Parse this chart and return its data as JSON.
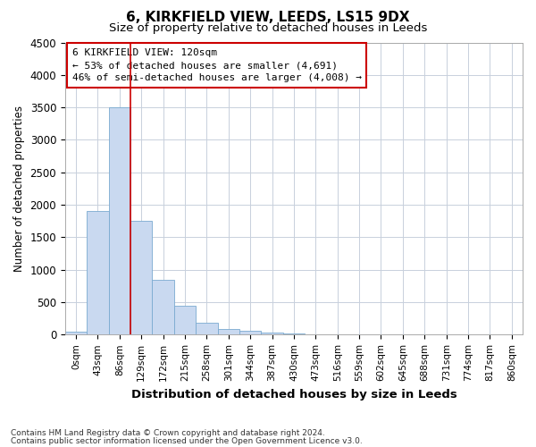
{
  "title": "6, KIRKFIELD VIEW, LEEDS, LS15 9DX",
  "subtitle": "Size of property relative to detached houses in Leeds",
  "xlabel": "Distribution of detached houses by size in Leeds",
  "ylabel": "Number of detached properties",
  "annotation_line1": "6 KIRKFIELD VIEW: 120sqm",
  "annotation_line2": "← 53% of detached houses are smaller (4,691)",
  "annotation_line3": "46% of semi-detached houses are larger (4,008) →",
  "footer_line1": "Contains HM Land Registry data © Crown copyright and database right 2024.",
  "footer_line2": "Contains public sector information licensed under the Open Government Licence v3.0.",
  "bar_color": "#c9d9f0",
  "bar_edge_color": "#7aaad0",
  "vline_color": "#cc0000",
  "vline_x": 2.5,
  "annotation_box_color": "#cc0000",
  "background_color": "#ffffff",
  "grid_color": "#c8d0dc",
  "categories": [
    "0sqm",
    "43sqm",
    "86sqm",
    "129sqm",
    "172sqm",
    "215sqm",
    "258sqm",
    "301sqm",
    "344sqm",
    "387sqm",
    "430sqm",
    "473sqm",
    "516sqm",
    "559sqm",
    "602sqm",
    "645sqm",
    "688sqm",
    "731sqm",
    "774sqm",
    "817sqm",
    "860sqm"
  ],
  "values": [
    50,
    1900,
    3500,
    1750,
    850,
    450,
    180,
    90,
    55,
    30,
    15,
    5,
    3,
    2,
    1,
    1,
    0,
    0,
    0,
    0,
    0
  ],
  "ylim": [
    0,
    4500
  ],
  "yticks": [
    0,
    500,
    1000,
    1500,
    2000,
    2500,
    3000,
    3500,
    4000,
    4500
  ]
}
